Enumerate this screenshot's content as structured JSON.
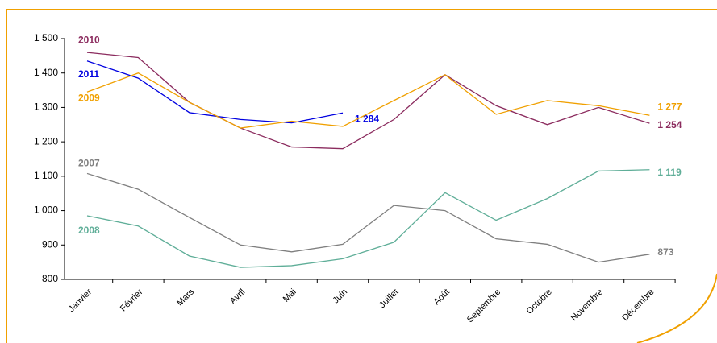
{
  "chart_data": {
    "type": "line",
    "categories": [
      "Janvier",
      "Février",
      "Mars",
      "Avril",
      "Mai",
      "Juin",
      "Juillet",
      "Août",
      "Septembre",
      "Octobre",
      "Novembre",
      "Décembre"
    ],
    "ylim": [
      800,
      1500
    ],
    "yticks": [
      800,
      900,
      {
        "value": 1000,
        "label": "1 000"
      },
      {
        "value": 1100,
        "label": "1 100"
      },
      {
        "value": 1200,
        "label": "1 200"
      },
      {
        "value": 1300,
        "label": "1 300"
      },
      {
        "value": 1400,
        "label": "1 400"
      },
      {
        "value": 1500,
        "label": "1 500"
      }
    ],
    "series": [
      {
        "name": "2010",
        "color": "#8b2b5e",
        "values": [
          1460,
          1445,
          1315,
          1240,
          1185,
          1180,
          1265,
          1395,
          1305,
          1250,
          1300,
          1254
        ],
        "value_labels": [
          null,
          null,
          null,
          null,
          null,
          null,
          null,
          null,
          null,
          null,
          null,
          "1 254"
        ]
      },
      {
        "name": "2011",
        "color": "#0000e0",
        "values": [
          1435,
          1385,
          1285,
          1265,
          1255,
          1284,
          null,
          null,
          null,
          null,
          null,
          null
        ],
        "value_labels": [
          null,
          null,
          null,
          null,
          null,
          "1 284",
          null,
          null,
          null,
          null,
          null,
          null
        ]
      },
      {
        "name": "2009",
        "color": "#f0a000",
        "values": [
          1345,
          1400,
          1315,
          1240,
          1260,
          1245,
          1320,
          1395,
          1280,
          1320,
          1305,
          1277
        ],
        "value_labels": [
          null,
          null,
          null,
          null,
          null,
          null,
          null,
          null,
          null,
          null,
          null,
          "1 277"
        ]
      },
      {
        "name": "2007",
        "color": "#7f7f7f",
        "values": [
          1108,
          1062,
          980,
          900,
          880,
          902,
          1015,
          1000,
          918,
          902,
          850,
          873
        ],
        "value_labels": [
          null,
          null,
          null,
          null,
          null,
          null,
          null,
          null,
          null,
          null,
          null,
          "873"
        ]
      },
      {
        "name": "2008",
        "color": "#5fae98",
        "values": [
          985,
          955,
          868,
          835,
          840,
          860,
          908,
          1052,
          972,
          1035,
          1115,
          1119
        ],
        "value_labels": [
          null,
          null,
          null,
          null,
          null,
          null,
          null,
          null,
          null,
          null,
          null,
          "1 119"
        ]
      }
    ]
  }
}
